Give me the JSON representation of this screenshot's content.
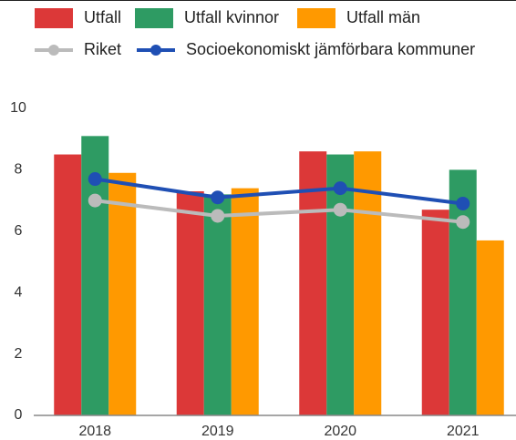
{
  "chart_data": {
    "type": "bar",
    "categories": [
      "2018",
      "2019",
      "2020",
      "2021"
    ],
    "series": [
      {
        "name": "Utfall",
        "type": "bar",
        "color": "#dc3838",
        "values": [
          8.5,
          7.3,
          8.6,
          6.7
        ]
      },
      {
        "name": "Utfall kvinnor",
        "type": "bar",
        "color": "#2e9b63",
        "values": [
          9.1,
          7.2,
          8.5,
          8.0
        ]
      },
      {
        "name": "Utfall män",
        "type": "bar",
        "color": "#ff9900",
        "values": [
          7.9,
          7.4,
          8.6,
          5.7
        ]
      },
      {
        "name": "Riket",
        "type": "line",
        "color": "#bbbbbb",
        "values": [
          7.0,
          6.5,
          6.7,
          6.3
        ]
      },
      {
        "name": "Socioekonomiskt jämförbara kommuner",
        "type": "line",
        "color": "#1f4fb4",
        "values": [
          7.7,
          7.1,
          7.4,
          6.9
        ]
      }
    ],
    "ylim": [
      0,
      10
    ],
    "yticks": [
      0,
      2,
      4,
      6,
      8,
      10
    ],
    "grid": false
  }
}
